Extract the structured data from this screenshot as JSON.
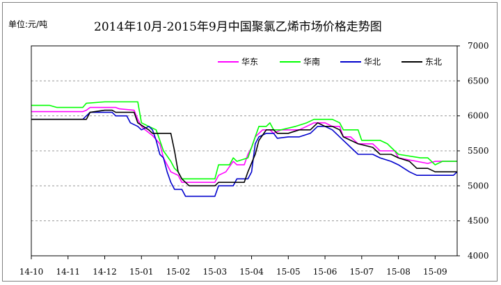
{
  "chart_data": {
    "type": "line",
    "title": "2014年10月-2015年9月中国聚氯乙烯市场价格走势图",
    "unit_label": "单位:元/吨",
    "xlabel": "",
    "ylabel": "",
    "x_ticks": [
      "14-10",
      "14-11",
      "14-12",
      "15-01",
      "15-02",
      "15-03",
      "15-04",
      "15-05",
      "15-06",
      "15-07",
      "15-08",
      "15-09"
    ],
    "y_ticks": [
      4000,
      4500,
      5000,
      5500,
      6000,
      6500,
      7000
    ],
    "ylim": [
      4000,
      7000
    ],
    "xlim": [
      0,
      11.6
    ],
    "grid": "horizontal-dashed",
    "legend_position": "top-right",
    "series": [
      {
        "name": "华东",
        "color": "#ff00ff",
        "points": [
          [
            0,
            6060
          ],
          [
            1.4,
            6060
          ],
          [
            1.5,
            6080
          ],
          [
            1.6,
            6120
          ],
          [
            2.3,
            6120
          ],
          [
            2.4,
            6100
          ],
          [
            2.8,
            6080
          ],
          [
            2.9,
            5950
          ],
          [
            3.0,
            5850
          ],
          [
            3.1,
            5800
          ],
          [
            3.3,
            5720
          ],
          [
            3.5,
            5600
          ],
          [
            3.6,
            5400
          ],
          [
            3.7,
            5300
          ],
          [
            3.8,
            5200
          ],
          [
            4.0,
            5150
          ],
          [
            4.1,
            5050
          ],
          [
            5.0,
            5050
          ],
          [
            5.1,
            5150
          ],
          [
            5.3,
            5200
          ],
          [
            5.5,
            5350
          ],
          [
            5.6,
            5300
          ],
          [
            5.8,
            5300
          ],
          [
            5.9,
            5450
          ],
          [
            6.0,
            5550
          ],
          [
            6.1,
            5700
          ],
          [
            6.3,
            5800
          ],
          [
            6.5,
            5800
          ],
          [
            6.6,
            5750
          ],
          [
            6.8,
            5800
          ],
          [
            7.3,
            5800
          ],
          [
            7.5,
            5850
          ],
          [
            7.7,
            5900
          ],
          [
            8.0,
            5900
          ],
          [
            8.2,
            5850
          ],
          [
            8.4,
            5850
          ],
          [
            8.5,
            5700
          ],
          [
            8.7,
            5700
          ],
          [
            8.9,
            5600
          ],
          [
            9.3,
            5600
          ],
          [
            9.5,
            5500
          ],
          [
            9.9,
            5500
          ],
          [
            10.0,
            5400
          ],
          [
            10.5,
            5350
          ],
          [
            10.8,
            5320
          ],
          [
            11.0,
            5350
          ],
          [
            11.2,
            5350
          ],
          [
            11.6,
            5350
          ]
        ]
      },
      {
        "name": "华南",
        "color": "#00ff00",
        "points": [
          [
            0,
            6150
          ],
          [
            0.5,
            6150
          ],
          [
            0.7,
            6120
          ],
          [
            1.4,
            6120
          ],
          [
            1.5,
            6180
          ],
          [
            2.0,
            6200
          ],
          [
            2.9,
            6200
          ],
          [
            3.0,
            5900
          ],
          [
            3.2,
            5850
          ],
          [
            3.4,
            5800
          ],
          [
            3.6,
            5500
          ],
          [
            3.8,
            5350
          ],
          [
            3.9,
            5250
          ],
          [
            4.0,
            5200
          ],
          [
            4.1,
            5100
          ],
          [
            5.0,
            5100
          ],
          [
            5.1,
            5300
          ],
          [
            5.4,
            5300
          ],
          [
            5.5,
            5400
          ],
          [
            5.6,
            5350
          ],
          [
            5.9,
            5400
          ],
          [
            6.1,
            5700
          ],
          [
            6.2,
            5850
          ],
          [
            6.4,
            5850
          ],
          [
            6.5,
            5900
          ],
          [
            6.6,
            5800
          ],
          [
            6.8,
            5800
          ],
          [
            7.2,
            5850
          ],
          [
            7.5,
            5900
          ],
          [
            7.7,
            5950
          ],
          [
            8.2,
            5950
          ],
          [
            8.4,
            5900
          ],
          [
            8.5,
            5800
          ],
          [
            8.9,
            5800
          ],
          [
            9.0,
            5650
          ],
          [
            9.5,
            5650
          ],
          [
            9.7,
            5600
          ],
          [
            9.8,
            5550
          ],
          [
            10.0,
            5450
          ],
          [
            10.6,
            5400
          ],
          [
            10.8,
            5400
          ],
          [
            11.0,
            5300
          ],
          [
            11.2,
            5350
          ],
          [
            11.6,
            5350
          ]
        ]
      },
      {
        "name": "华北",
        "color": "#0000cc",
        "points": [
          [
            0,
            5950
          ],
          [
            1.4,
            5950
          ],
          [
            1.6,
            6050
          ],
          [
            2.2,
            6050
          ],
          [
            2.3,
            6000
          ],
          [
            2.6,
            6000
          ],
          [
            2.7,
            5900
          ],
          [
            2.9,
            5850
          ],
          [
            3.0,
            5800
          ],
          [
            3.2,
            5850
          ],
          [
            3.3,
            5800
          ],
          [
            3.4,
            5650
          ],
          [
            3.5,
            5450
          ],
          [
            3.6,
            5400
          ],
          [
            3.7,
            5200
          ],
          [
            3.8,
            5050
          ],
          [
            3.9,
            4950
          ],
          [
            4.1,
            4950
          ],
          [
            4.2,
            4850
          ],
          [
            5.0,
            4850
          ],
          [
            5.1,
            5000
          ],
          [
            5.5,
            5000
          ],
          [
            5.6,
            5100
          ],
          [
            5.9,
            5100
          ],
          [
            6.0,
            5200
          ],
          [
            6.1,
            5600
          ],
          [
            6.2,
            5700
          ],
          [
            6.4,
            5750
          ],
          [
            6.6,
            5750
          ],
          [
            6.7,
            5680
          ],
          [
            7.0,
            5700
          ],
          [
            7.3,
            5700
          ],
          [
            7.6,
            5750
          ],
          [
            7.8,
            5850
          ],
          [
            8.0,
            5850
          ],
          [
            8.2,
            5800
          ],
          [
            8.5,
            5650
          ],
          [
            8.7,
            5550
          ],
          [
            8.9,
            5450
          ],
          [
            9.3,
            5450
          ],
          [
            9.5,
            5400
          ],
          [
            9.8,
            5350
          ],
          [
            10.0,
            5300
          ],
          [
            10.3,
            5200
          ],
          [
            10.5,
            5150
          ],
          [
            11.5,
            5150
          ],
          [
            11.6,
            5200
          ]
        ]
      },
      {
        "name": "东北",
        "color": "#000000",
        "points": [
          [
            0,
            5950
          ],
          [
            1.5,
            5950
          ],
          [
            1.6,
            6050
          ],
          [
            2.0,
            6080
          ],
          [
            2.2,
            6080
          ],
          [
            2.3,
            6050
          ],
          [
            2.8,
            6050
          ],
          [
            2.9,
            5900
          ],
          [
            3.2,
            5800
          ],
          [
            3.3,
            5750
          ],
          [
            3.8,
            5750
          ],
          [
            3.9,
            5500
          ],
          [
            4.0,
            5200
          ],
          [
            4.1,
            5100
          ],
          [
            4.3,
            5000
          ],
          [
            5.0,
            5000
          ],
          [
            5.1,
            5050
          ],
          [
            5.8,
            5050
          ],
          [
            5.9,
            5200
          ],
          [
            6.1,
            5450
          ],
          [
            6.2,
            5650
          ],
          [
            6.4,
            5800
          ],
          [
            6.6,
            5800
          ],
          [
            6.7,
            5750
          ],
          [
            7.0,
            5750
          ],
          [
            7.3,
            5800
          ],
          [
            7.6,
            5800
          ],
          [
            7.8,
            5900
          ],
          [
            8.0,
            5850
          ],
          [
            8.2,
            5850
          ],
          [
            8.4,
            5800
          ],
          [
            8.5,
            5700
          ],
          [
            8.7,
            5650
          ],
          [
            8.9,
            5600
          ],
          [
            9.3,
            5550
          ],
          [
            9.5,
            5450
          ],
          [
            9.8,
            5450
          ],
          [
            10.0,
            5400
          ],
          [
            10.3,
            5350
          ],
          [
            10.5,
            5250
          ],
          [
            10.8,
            5250
          ],
          [
            11.0,
            5200
          ],
          [
            11.5,
            5200
          ],
          [
            11.6,
            5200
          ]
        ]
      }
    ]
  }
}
